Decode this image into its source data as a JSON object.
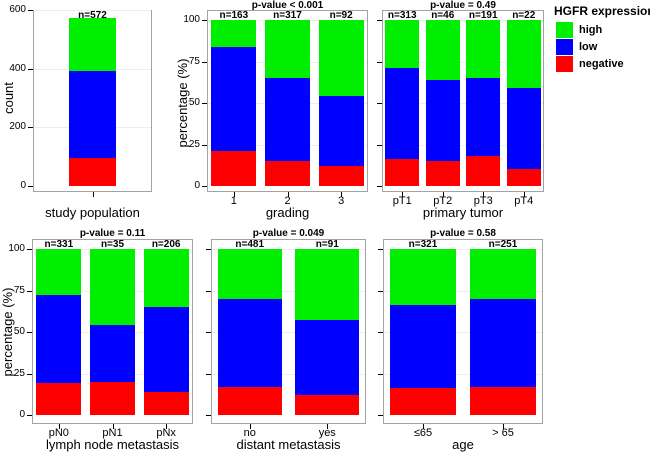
{
  "colors": {
    "high": "#00ee00",
    "low": "#0000ff",
    "negative": "#ff0000",
    "panel_border": "#a3a3a3",
    "gridline": "#ededed",
    "text": "#000000"
  },
  "legend": {
    "title": "HGFR expression",
    "items": [
      {
        "label": "high",
        "color": "#00ee00"
      },
      {
        "label": "low",
        "color": "#0000ff"
      },
      {
        "label": "negative",
        "color": "#ff0000"
      }
    ]
  },
  "chart_data": [
    {
      "key": "study-population",
      "type": "bar",
      "stacked": true,
      "title": "",
      "xlabel": "study population",
      "ylabel": "count",
      "ylim": [
        0,
        600
      ],
      "yticks": [
        0,
        200,
        400,
        600
      ],
      "show_ytick_labels": true,
      "grid": "major-horizontal",
      "categories": [
        ""
      ],
      "n_labels": [
        "n=572"
      ],
      "series": [
        {
          "name": "negative",
          "values": [
            97
          ]
        },
        {
          "name": "low",
          "values": [
            294
          ]
        },
        {
          "name": "high",
          "values": [
            181
          ]
        }
      ]
    },
    {
      "key": "grading",
      "type": "bar",
      "stacked": true,
      "title": "p-value < 0.001",
      "xlabel": "grading",
      "ylabel": "percentage (%)",
      "ylim": [
        0,
        100
      ],
      "yticks": [
        0,
        25,
        50,
        75,
        100
      ],
      "show_ytick_labels": true,
      "grid": "major-horizontal",
      "categories": [
        "1",
        "2",
        "3"
      ],
      "n_labels": [
        "n=163",
        "n=317",
        "n=92"
      ],
      "series": [
        {
          "name": "negative",
          "values": [
            21,
            15,
            12
          ]
        },
        {
          "name": "low",
          "values": [
            63,
            50,
            42
          ]
        },
        {
          "name": "high",
          "values": [
            16,
            35,
            46
          ]
        }
      ]
    },
    {
      "key": "primary-tumor",
      "type": "bar",
      "stacked": true,
      "title": "p-value = 0.49",
      "xlabel": "primary tumor",
      "ylabel": "",
      "ylim": [
        0,
        100
      ],
      "yticks": [
        0,
        25,
        50,
        75,
        100
      ],
      "show_ytick_labels": false,
      "grid": "major-horizontal",
      "categories": [
        "pT1",
        "pT2",
        "pT3",
        "pT4"
      ],
      "n_labels": [
        "n=313",
        "n=46",
        "n=191",
        "n=22"
      ],
      "series": [
        {
          "name": "negative",
          "values": [
            16,
            15,
            18,
            10
          ]
        },
        {
          "name": "low",
          "values": [
            55,
            49,
            47,
            49
          ]
        },
        {
          "name": "high",
          "values": [
            29,
            36,
            35,
            41
          ]
        }
      ]
    },
    {
      "key": "lymph-node-metastasis",
      "type": "bar",
      "stacked": true,
      "title": "p-value = 0.11",
      "xlabel": "lymph node metastasis",
      "ylabel": "percentage (%)",
      "ylim": [
        0,
        100
      ],
      "yticks": [
        0,
        25,
        50,
        75,
        100
      ],
      "show_ytick_labels": true,
      "grid": "major-horizontal",
      "categories": [
        "pN0",
        "pN1",
        "pNx"
      ],
      "n_labels": [
        "n=331",
        "n=35",
        "n=206"
      ],
      "series": [
        {
          "name": "negative",
          "values": [
            19,
            20,
            14
          ]
        },
        {
          "name": "low",
          "values": [
            53,
            34,
            51
          ]
        },
        {
          "name": "high",
          "values": [
            28,
            46,
            35
          ]
        }
      ]
    },
    {
      "key": "distant-metastasis",
      "type": "bar",
      "stacked": true,
      "title": "p-value = 0.049",
      "xlabel": "distant metastasis",
      "ylabel": "",
      "ylim": [
        0,
        100
      ],
      "yticks": [
        0,
        25,
        50,
        75,
        100
      ],
      "show_ytick_labels": false,
      "grid": "major-horizontal",
      "categories": [
        "no",
        "yes"
      ],
      "n_labels": [
        "n=481",
        "n=91"
      ],
      "series": [
        {
          "name": "negative",
          "values": [
            17,
            12
          ]
        },
        {
          "name": "low",
          "values": [
            53,
            45
          ]
        },
        {
          "name": "high",
          "values": [
            30,
            43
          ]
        }
      ]
    },
    {
      "key": "age",
      "type": "bar",
      "stacked": true,
      "title": "p-value = 0.58",
      "xlabel": "age",
      "ylabel": "",
      "ylim": [
        0,
        100
      ],
      "yticks": [
        0,
        25,
        50,
        75,
        100
      ],
      "show_ytick_labels": false,
      "grid": "major-horizontal",
      "categories": [
        "≤65",
        "> 65"
      ],
      "n_labels": [
        "n=321",
        "n=251"
      ],
      "series": [
        {
          "name": "negative",
          "values": [
            16,
            17
          ]
        },
        {
          "name": "low",
          "values": [
            50,
            53
          ]
        },
        {
          "name": "high",
          "values": [
            34,
            30
          ]
        }
      ]
    }
  ]
}
